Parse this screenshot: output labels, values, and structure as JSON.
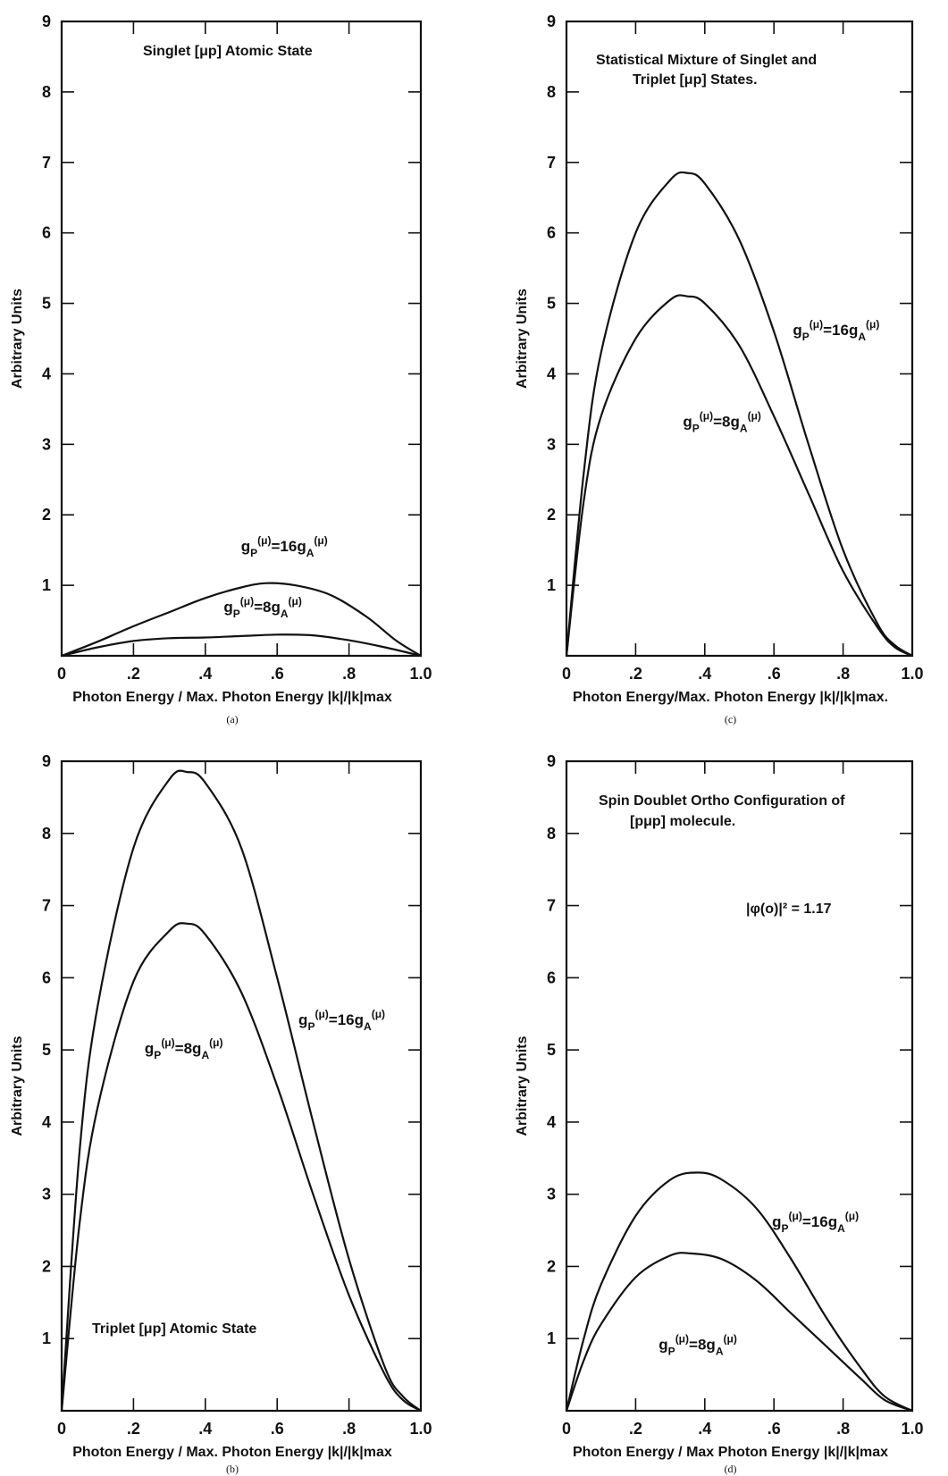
{
  "chart_data": [
    {
      "id": "a",
      "type": "line",
      "title_lines": [
        "Singlet [μp] Atomic State"
      ],
      "caption": "(a)",
      "xlabel": "Photon Energy / Max. Photon Energy  |k|/|k|max",
      "ylabel": "Arbitrary Units",
      "xlim": [
        0,
        1.0
      ],
      "ylim": [
        0,
        9
      ],
      "x_ticks": [
        "0",
        ".2",
        ".4",
        ".6",
        ".8",
        "1.0"
      ],
      "y_ticks": [
        "1",
        "2",
        "3",
        "4",
        "5",
        "6",
        "7",
        "8",
        "9"
      ],
      "series": [
        {
          "label": "g_P^(μ)=16g_A^(μ)",
          "x": [
            0,
            0.1,
            0.2,
            0.3,
            0.4,
            0.5,
            0.57,
            0.65,
            0.75,
            0.85,
            0.93,
            1.0
          ],
          "y": [
            0,
            0.2,
            0.42,
            0.62,
            0.82,
            0.97,
            1.03,
            1.0,
            0.86,
            0.55,
            0.22,
            0
          ]
        },
        {
          "label": "g_P^(μ)=8g_A^(μ)",
          "x": [
            0,
            0.1,
            0.2,
            0.3,
            0.4,
            0.5,
            0.6,
            0.7,
            0.8,
            0.9,
            1.0
          ],
          "y": [
            0,
            0.12,
            0.21,
            0.25,
            0.26,
            0.28,
            0.3,
            0.29,
            0.22,
            0.12,
            0
          ]
        }
      ]
    },
    {
      "id": "c",
      "type": "line",
      "title_lines": [
        "Statistical Mixture of Singlet and",
        "Triplet [μp] States."
      ],
      "caption": "(c)",
      "xlabel": "Photon Energy/Max. Photon Energy  |k|/|k|max.",
      "ylabel": "Arbitrary Units",
      "xlim": [
        0,
        1.0
      ],
      "ylim": [
        0,
        9
      ],
      "x_ticks": [
        "0",
        ".2",
        ".4",
        ".6",
        ".8",
        "1.0"
      ],
      "y_ticks": [
        "1",
        "2",
        "3",
        "4",
        "5",
        "6",
        "7",
        "8",
        "9"
      ],
      "series": [
        {
          "label": "g_P^(μ)=16g_A^(μ)",
          "x": [
            0,
            0.05,
            0.1,
            0.2,
            0.3,
            0.35,
            0.4,
            0.5,
            0.6,
            0.7,
            0.8,
            0.9,
            0.95,
            1.0
          ],
          "y": [
            0,
            2.6,
            4.3,
            6.0,
            6.75,
            6.85,
            6.7,
            5.9,
            4.6,
            3.0,
            1.5,
            0.45,
            0.15,
            0
          ]
        },
        {
          "label": "g_P^(μ)=8g_A^(μ)",
          "x": [
            0,
            0.05,
            0.1,
            0.2,
            0.3,
            0.35,
            0.4,
            0.5,
            0.6,
            0.7,
            0.8,
            0.9,
            0.95,
            1.0
          ],
          "y": [
            0,
            2.2,
            3.4,
            4.5,
            5.05,
            5.1,
            5.0,
            4.4,
            3.4,
            2.3,
            1.2,
            0.4,
            0.12,
            0
          ]
        }
      ]
    },
    {
      "id": "b",
      "type": "line",
      "title_lines": [
        "Triplet [μp] Atomic State"
      ],
      "caption": "(b)",
      "xlabel": "Photon Energy / Max. Photon Energy    |k|/|k|max",
      "ylabel": "Arbitrary Units",
      "xlim": [
        0,
        1.0
      ],
      "ylim": [
        0,
        9
      ],
      "x_ticks": [
        "0",
        ".2",
        ".4",
        ".6",
        ".8",
        "1.0"
      ],
      "y_ticks": [
        "1",
        "2",
        "3",
        "4",
        "5",
        "6",
        "7",
        "8",
        "9"
      ],
      "series": [
        {
          "label": "g_P^(μ)=16g_A^(μ)",
          "x": [
            0,
            0.05,
            0.1,
            0.2,
            0.3,
            0.35,
            0.4,
            0.5,
            0.6,
            0.7,
            0.8,
            0.9,
            0.95,
            1.0
          ],
          "y": [
            0,
            3.6,
            5.6,
            7.8,
            8.75,
            8.85,
            8.7,
            7.8,
            6.0,
            4.0,
            2.1,
            0.6,
            0.2,
            0
          ]
        },
        {
          "label": "g_P^(μ)=8g_A^(μ)",
          "x": [
            0,
            0.05,
            0.1,
            0.2,
            0.3,
            0.35,
            0.4,
            0.5,
            0.6,
            0.7,
            0.8,
            0.9,
            0.95,
            1.0
          ],
          "y": [
            0,
            2.6,
            4.2,
            5.95,
            6.65,
            6.75,
            6.6,
            5.8,
            4.5,
            3.0,
            1.6,
            0.5,
            0.15,
            0
          ]
        }
      ]
    },
    {
      "id": "d",
      "type": "line",
      "title_lines": [
        "Spin Doublet Ortho Configuration of",
        "[pμp] molecule."
      ],
      "caption": "(d)",
      "annotation": "|φ(o)|² = 1.17",
      "xlabel": "Photon Energy / Max Photon Energy  |k|/|k|max",
      "ylabel": "Arbitrary Units",
      "xlim": [
        0,
        1.0
      ],
      "ylim": [
        0,
        9
      ],
      "x_ticks": [
        "0",
        ".2",
        ".4",
        ".6",
        ".8",
        "1.0"
      ],
      "y_ticks": [
        "1",
        "2",
        "3",
        "4",
        "5",
        "6",
        "7",
        "8",
        "9"
      ],
      "series": [
        {
          "label": "g_P^(μ)=16g_A^(μ)",
          "x": [
            0,
            0.05,
            0.1,
            0.2,
            0.3,
            0.38,
            0.45,
            0.55,
            0.65,
            0.75,
            0.85,
            0.92,
            1.0
          ],
          "y": [
            0,
            1.0,
            1.75,
            2.7,
            3.2,
            3.3,
            3.2,
            2.8,
            2.1,
            1.3,
            0.6,
            0.2,
            0
          ]
        },
        {
          "label": "g_P^(μ)=8g_A^(μ)",
          "x": [
            0,
            0.05,
            0.1,
            0.2,
            0.3,
            0.36,
            0.45,
            0.55,
            0.65,
            0.75,
            0.85,
            0.92,
            1.0
          ],
          "y": [
            0,
            0.7,
            1.2,
            1.85,
            2.15,
            2.18,
            2.1,
            1.8,
            1.35,
            0.9,
            0.45,
            0.15,
            0
          ]
        }
      ]
    }
  ]
}
